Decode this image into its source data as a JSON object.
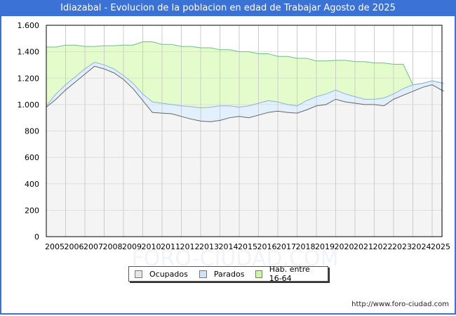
{
  "title": "Idiazabal - Evolucion de la poblacion en edad de Trabajar Agosto de 2025",
  "credit": "http://www.foro-ciudad.com",
  "watermark": "FORO-CIUDAD.COM",
  "colors": {
    "title_bg": "#3a72d6",
    "ocupados_fill": "#f4f4f4",
    "ocupados_line": "#666666",
    "parados_fill": "#e2effc",
    "parados_line": "#8eb2e4",
    "hab_fill": "#e4fbcc",
    "hab_line": "#6fbf86"
  },
  "legend": [
    {
      "label": "Ocupados",
      "color": "#e6e6e6"
    },
    {
      "label": "Parados",
      "color": "#cfe3fb"
    },
    {
      "label": "Hab. entre 16-64",
      "color": "#ccf7a8"
    }
  ],
  "chart_data": {
    "type": "area",
    "title": "Idiazabal - Evolucion de la poblacion en edad de Trabajar Agosto de 2025",
    "xlabel": "",
    "ylabel": "",
    "ylim": [
      0,
      1600
    ],
    "yticks": [
      0,
      200,
      400,
      600,
      800,
      1000,
      1200,
      1400,
      1600
    ],
    "ytick_labels": [
      "0",
      "200",
      "400",
      "600",
      "800",
      "1.000",
      "1.200",
      "1.400",
      "1.600"
    ],
    "xticks": [
      "2005",
      "2006",
      "2007",
      "2008",
      "2009",
      "2010",
      "2011",
      "2012",
      "2013",
      "2014",
      "2015",
      "2016",
      "2017",
      "2018",
      "2019",
      "2020",
      "2021",
      "2022",
      "2023",
      "2024",
      "2025"
    ],
    "grid": true,
    "legend_position": "bottom",
    "x": [
      2005.0,
      2005.5,
      2006.0,
      2006.5,
      2007.0,
      2007.5,
      2008.0,
      2008.5,
      2009.0,
      2009.5,
      2010.0,
      2010.5,
      2011.0,
      2011.5,
      2012.0,
      2012.5,
      2013.0,
      2013.5,
      2014.0,
      2014.5,
      2015.0,
      2015.5,
      2016.0,
      2016.5,
      2017.0,
      2017.5,
      2018.0,
      2018.5,
      2019.0,
      2019.5,
      2020.0,
      2020.5,
      2021.0,
      2021.5,
      2022.0,
      2022.5,
      2023.0,
      2023.5,
      2024.0,
      2024.5,
      2025.0,
      2025.6
    ],
    "series": [
      {
        "name": "Ocupados",
        "values": [
          980,
          1040,
          1110,
          1170,
          1230,
          1290,
          1270,
          1240,
          1190,
          1120,
          1030,
          940,
          935,
          930,
          910,
          890,
          875,
          870,
          880,
          900,
          910,
          900,
          920,
          940,
          950,
          940,
          935,
          960,
          990,
          1000,
          1040,
          1020,
          1010,
          1000,
          1000,
          990,
          1040,
          1070,
          1100,
          1130,
          1150,
          1100
        ]
      },
      {
        "name": "Parados",
        "values": [
          990,
          1080,
          1150,
          1210,
          1270,
          1320,
          1300,
          1270,
          1220,
          1160,
          1080,
          1020,
          1010,
          1000,
          990,
          985,
          975,
          980,
          990,
          990,
          980,
          990,
          1010,
          1030,
          1020,
          1000,
          990,
          1030,
          1060,
          1080,
          1110,
          1080,
          1060,
          1040,
          1040,
          1050,
          1080,
          1120,
          1150,
          1160,
          1180,
          1160
        ]
      },
      {
        "name": "Hab. entre 16-64",
        "values": [
          1435,
          1435,
          1450,
          1450,
          1440,
          1440,
          1445,
          1445,
          1450,
          1450,
          1475,
          1475,
          1455,
          1455,
          1440,
          1440,
          1430,
          1430,
          1415,
          1415,
          1400,
          1400,
          1385,
          1385,
          1365,
          1365,
          1350,
          1350,
          1330,
          1330,
          1335,
          1335,
          1325,
          1325,
          1315,
          1315,
          1305,
          1305,
          1150,
          1160,
          1180,
          1160
        ]
      }
    ]
  }
}
